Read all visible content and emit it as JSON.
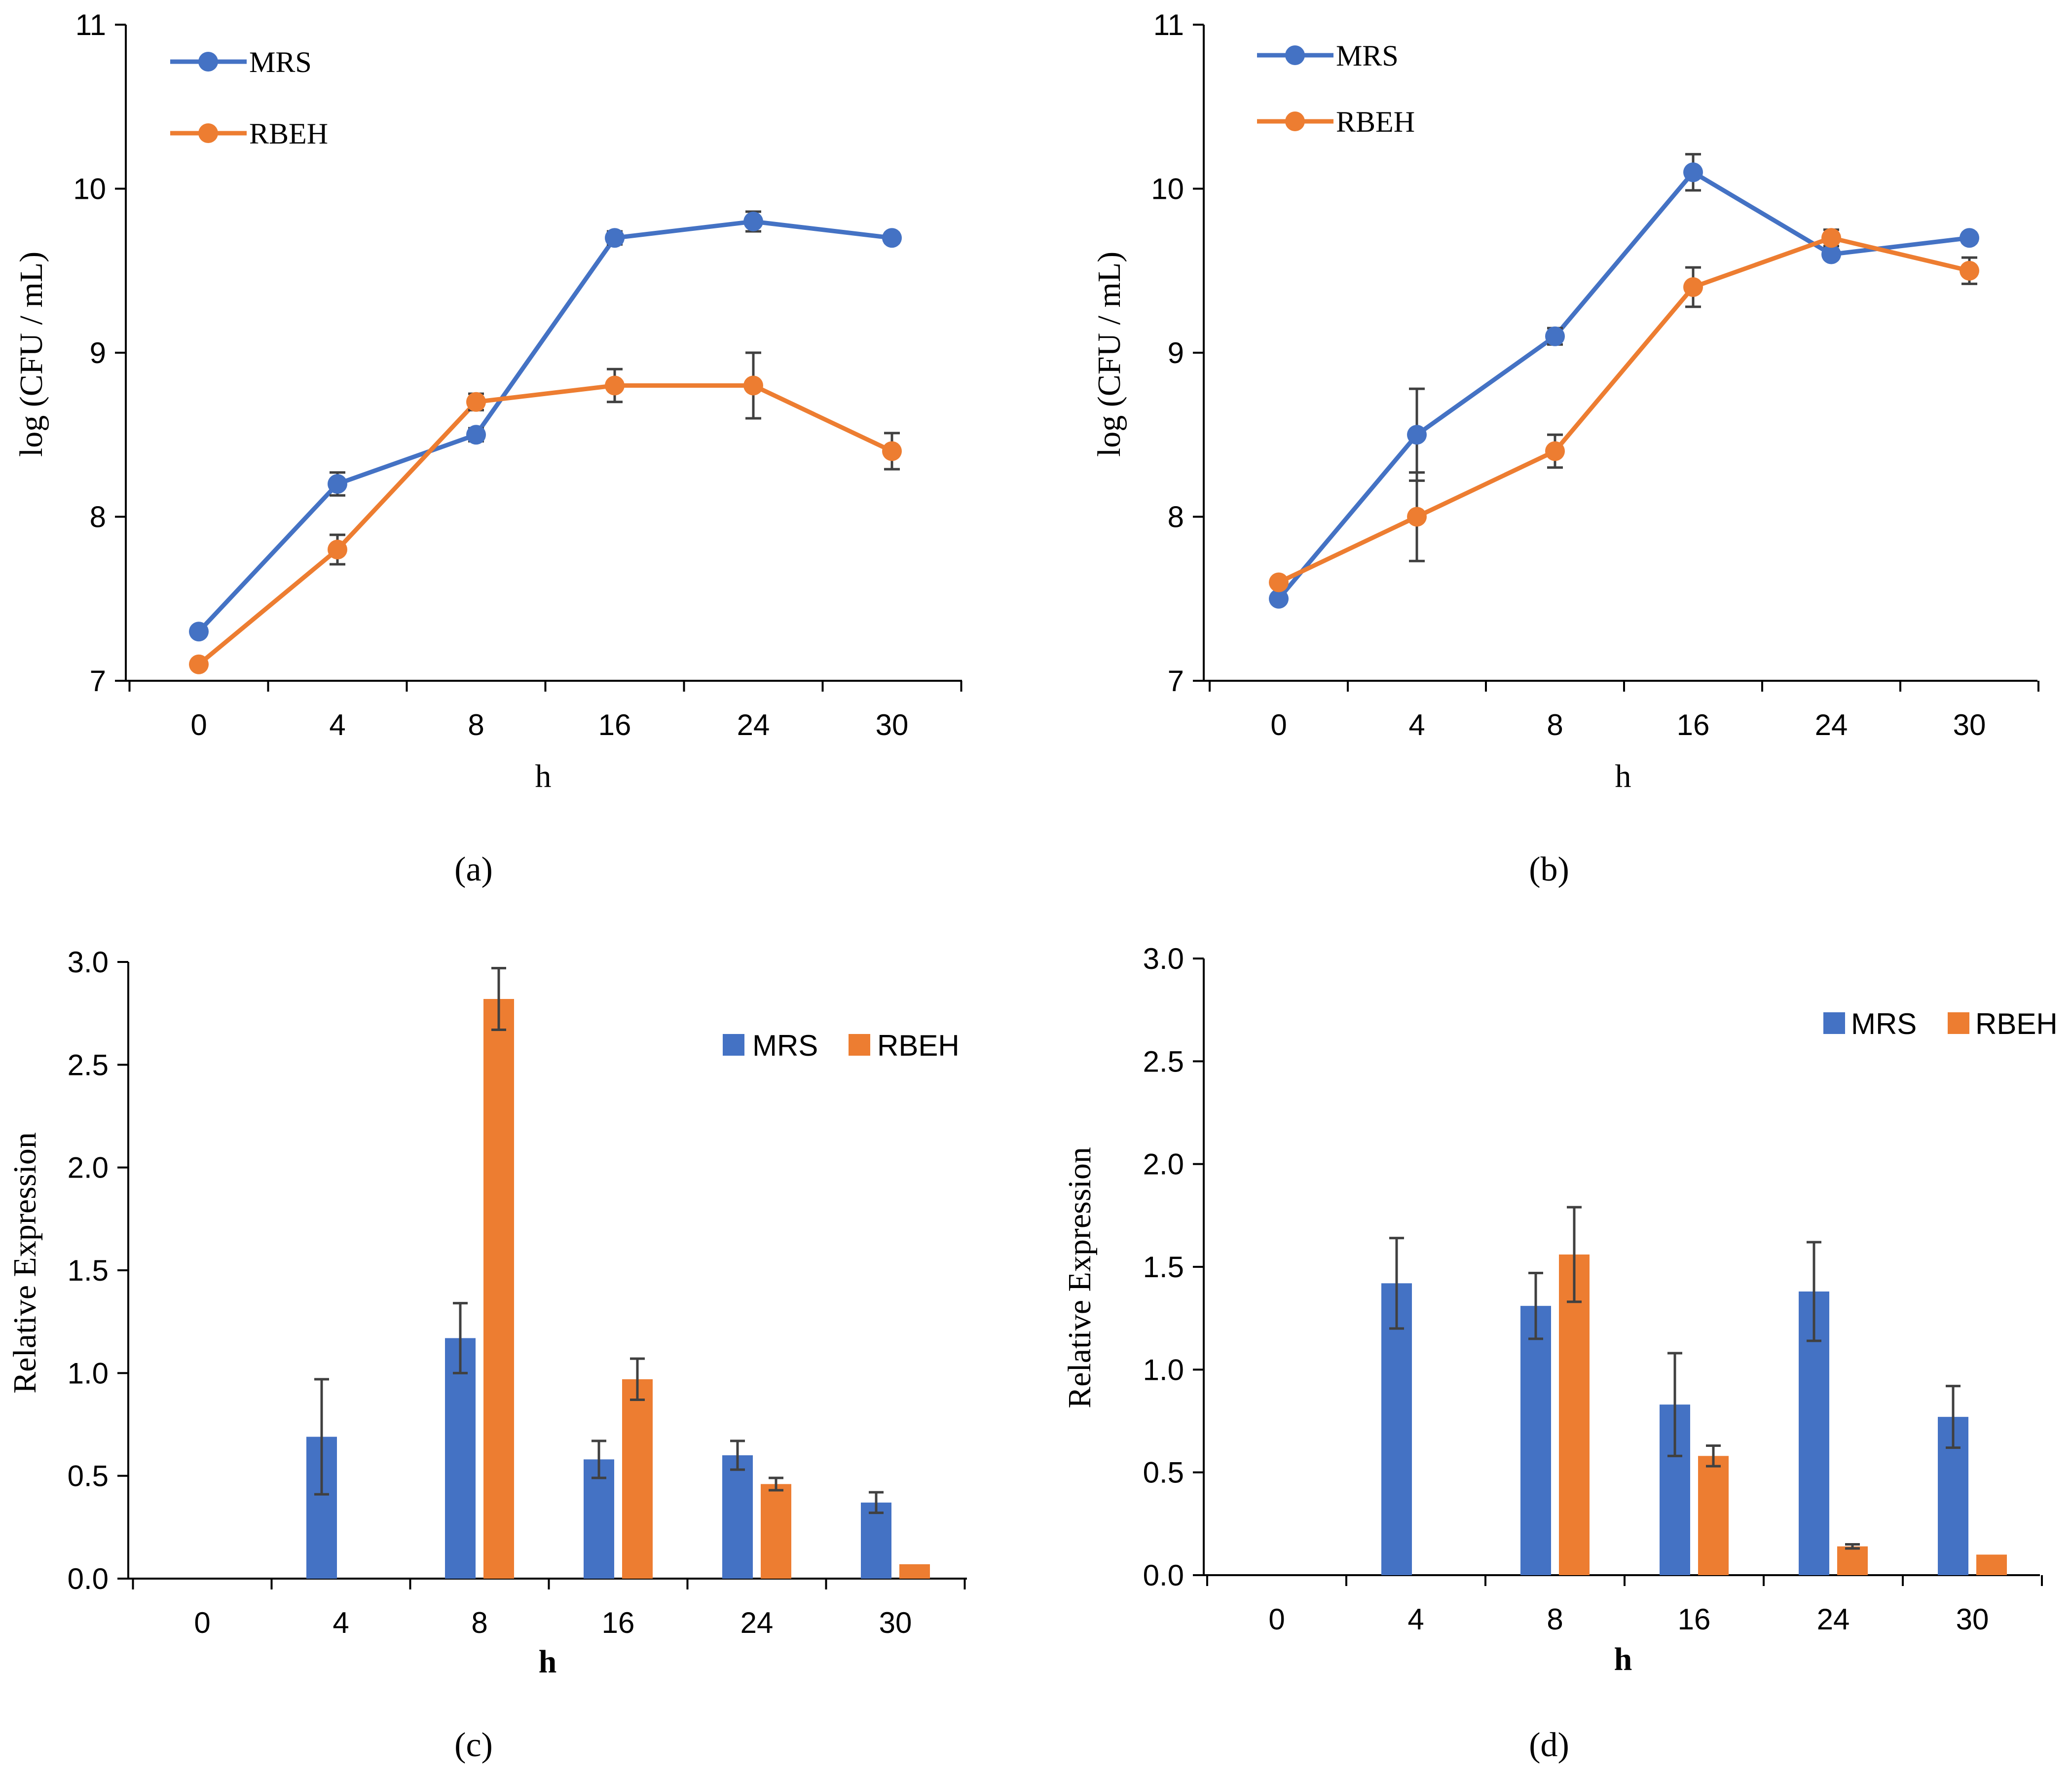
{
  "figure": {
    "colors": {
      "MRS": "#4472C4",
      "RBEH": "#ED7D31"
    }
  },
  "chart_data": [
    {
      "panel": "(a)",
      "type": "line",
      "xlabel": "h",
      "ylabel": "log (CFU / mL)",
      "categories": [
        "0",
        "4",
        "8",
        "16",
        "24",
        "30"
      ],
      "ylim": [
        7,
        11
      ],
      "yticks": [
        "7",
        "8",
        "9",
        "10",
        "11"
      ],
      "legend_position": "top-left",
      "series": [
        {
          "name": "MRS",
          "values": [
            7.3,
            8.2,
            8.5,
            9.7,
            9.8,
            9.7
          ],
          "errors": [
            0,
            0.07,
            0.04,
            0.04,
            0.06,
            0.03
          ]
        },
        {
          "name": "RBEH",
          "values": [
            7.1,
            7.8,
            8.7,
            8.8,
            8.8,
            8.4
          ],
          "errors": [
            0,
            0.09,
            0.05,
            0.1,
            0.2,
            0.11
          ]
        }
      ]
    },
    {
      "panel": "(b)",
      "type": "line",
      "xlabel": "h",
      "ylabel": "log (CFU / mL)",
      "categories": [
        "0",
        "4",
        "8",
        "16",
        "24",
        "30"
      ],
      "ylim": [
        7,
        11
      ],
      "yticks": [
        "7",
        "8",
        "9",
        "10",
        "11"
      ],
      "legend_position": "top-left",
      "series": [
        {
          "name": "MRS",
          "values": [
            7.5,
            8.5,
            9.1,
            10.1,
            9.6,
            9.7
          ],
          "errors": [
            0,
            0.28,
            0.05,
            0.11,
            0.03,
            0.03
          ]
        },
        {
          "name": "RBEH",
          "values": [
            7.6,
            8.0,
            8.4,
            9.4,
            9.7,
            9.5
          ],
          "errors": [
            0,
            0.27,
            0.1,
            0.12,
            0.05,
            0.08
          ]
        }
      ]
    },
    {
      "panel": "(c)",
      "type": "bar",
      "xlabel": "h",
      "ylabel": "Relative  Expression",
      "categories": [
        "0",
        "4",
        "8",
        "16",
        "24",
        "30"
      ],
      "ylim": [
        0,
        3
      ],
      "yticks": [
        "0.0",
        "0.5",
        "1.0",
        "1.5",
        "2.0",
        "2.5",
        "3.0"
      ],
      "legend_position": "top-right",
      "series": [
        {
          "name": "MRS",
          "values": [
            0,
            0.69,
            1.17,
            0.58,
            0.6,
            0.37
          ],
          "errors": [
            0,
            0.28,
            0.17,
            0.09,
            0.07,
            0.05
          ]
        },
        {
          "name": "RBEH",
          "values": [
            0,
            0,
            2.82,
            0.97,
            0.46,
            0.07
          ],
          "errors": [
            0,
            0,
            0.15,
            0.1,
            0.03,
            0
          ]
        }
      ]
    },
    {
      "panel": "(d)",
      "type": "bar",
      "xlabel": "h",
      "ylabel": "Relative Expression",
      "categories": [
        "0",
        "4",
        "8",
        "16",
        "24",
        "30"
      ],
      "ylim": [
        0,
        3
      ],
      "yticks": [
        "0.0",
        "0.5",
        "1.0",
        "1.5",
        "2.0",
        "2.5",
        "3.0"
      ],
      "legend_position": "top-right",
      "series": [
        {
          "name": "MRS",
          "values": [
            0,
            1.42,
            1.31,
            0.83,
            1.38,
            0.77
          ],
          "errors": [
            0,
            0.22,
            0.16,
            0.25,
            0.24,
            0.15
          ]
        },
        {
          "name": "RBEH",
          "values": [
            0,
            0,
            1.56,
            0.58,
            0.14,
            0.1
          ],
          "errors": [
            0,
            0,
            0.23,
            0.05,
            0.01,
            0
          ]
        }
      ]
    }
  ]
}
